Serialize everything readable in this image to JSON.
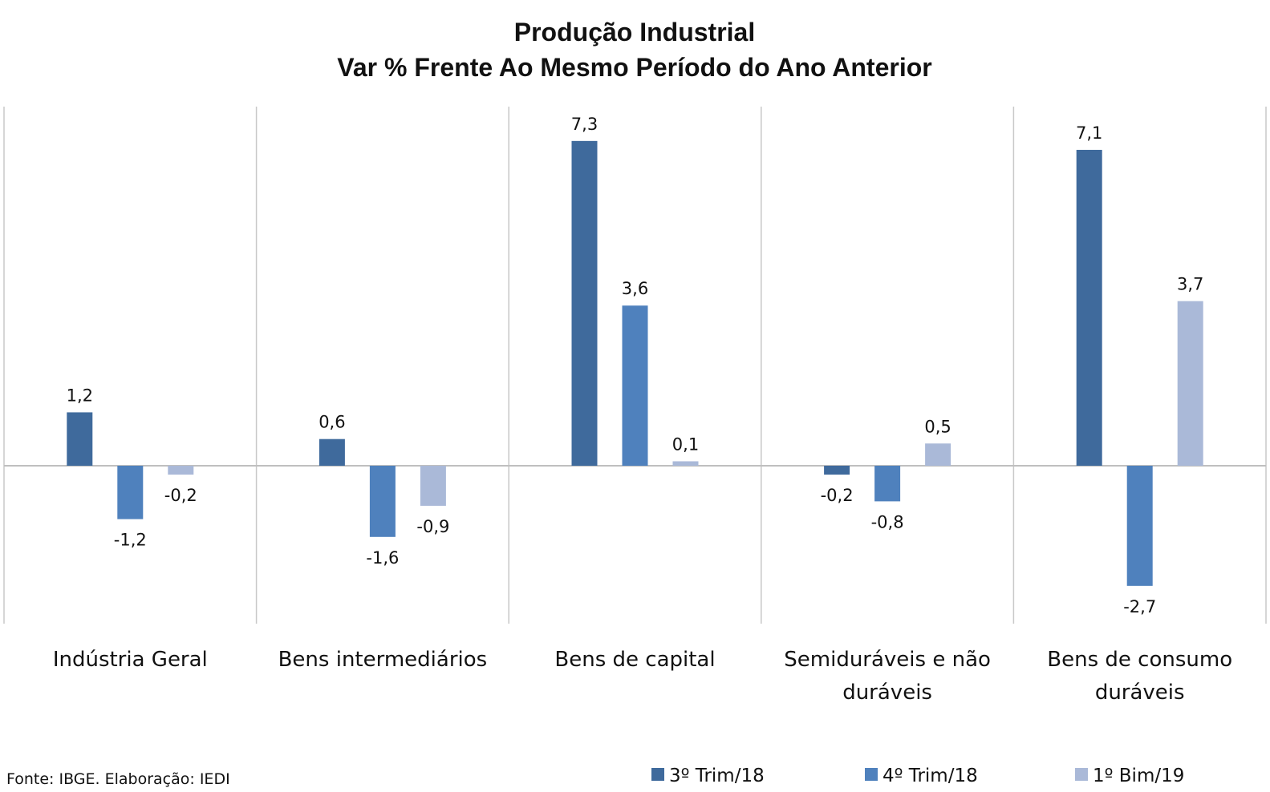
{
  "source_note": "Fonte: IBGE. Elaboração: IEDI",
  "chart_data": {
    "type": "bar",
    "title": "Produção Industrial",
    "subtitle": "Var % Frente Ao Mesmo Período do Ano Anterior",
    "categories": [
      [
        "Indústria Geral"
      ],
      [
        "Bens intermediários"
      ],
      [
        "Bens de capital"
      ],
      [
        "Semiduráveis e não",
        "duráveis"
      ],
      [
        "Bens de consumo",
        "duráveis"
      ]
    ],
    "series": [
      {
        "name": "3º Trim/18",
        "color": "#3f6a9c",
        "values": [
          1.2,
          0.6,
          7.3,
          -0.2,
          7.1
        ],
        "labels": [
          "1,2",
          "0,6",
          "7,3",
          "-0,2",
          "7,1"
        ]
      },
      {
        "name": "4º Trim/18",
        "color": "#4f81bd",
        "values": [
          -1.2,
          -1.6,
          3.6,
          -0.8,
          -2.7
        ],
        "labels": [
          "-1,2",
          "-1,6",
          "3,6",
          "-0,8",
          "-2,7"
        ]
      },
      {
        "name": "1º Bim/19",
        "color": "#aab9d8",
        "values": [
          -0.2,
          -0.9,
          0.1,
          0.5,
          3.7
        ],
        "labels": [
          "-0,2",
          "-0,9",
          "0,1",
          "0,5",
          "3,7"
        ]
      }
    ],
    "ylim": [
      -3.5,
      8.0
    ],
    "grid": "vertical category separators",
    "legend": "bottom"
  }
}
